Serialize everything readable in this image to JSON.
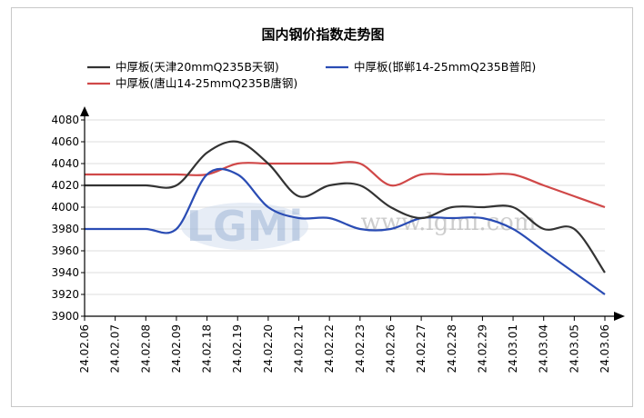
{
  "chart_data": {
    "type": "line",
    "title": "国内钢价指数走势图",
    "watermark": {
      "logo": "LGMi",
      "url": "www.lgmi.com"
    },
    "categories": [
      "24.02.06",
      "24.02.07",
      "24.02.08",
      "24.02.09",
      "24.02.18",
      "24.02.19",
      "24.02.20",
      "24.02.21",
      "24.02.22",
      "24.02.23",
      "24.02.26",
      "24.02.27",
      "24.02.28",
      "24.02.29",
      "24.03.01",
      "24.03.04",
      "24.03.05",
      "24.03.06"
    ],
    "ylim": [
      3900,
      4080
    ],
    "yticks": [
      3900,
      3920,
      3940,
      3960,
      3980,
      4000,
      4020,
      4040,
      4060,
      4080
    ],
    "grid": true,
    "legend_position": "top",
    "series": [
      {
        "name": "中厚板(天津20mmQ235B天钢)",
        "color": "#333333",
        "values": [
          4020,
          4020,
          4020,
          4020,
          4050,
          4060,
          4040,
          4010,
          4020,
          4020,
          4000,
          3990,
          4000,
          4000,
          4000,
          3980,
          3980,
          3940
        ]
      },
      {
        "name": "中厚板(邯郸14-25mmQ235B普阳)",
        "color": "#2a4cb4",
        "values": [
          3980,
          3980,
          3980,
          3980,
          4030,
          4030,
          4000,
          3990,
          3990,
          3980,
          3980,
          3990,
          3990,
          3990,
          3980,
          3960,
          3940,
          3920
        ]
      },
      {
        "name": "中厚板(唐山14-25mmQ235B唐钢)",
        "color": "#d04848",
        "values": [
          4030,
          4030,
          4030,
          4030,
          4030,
          4040,
          4040,
          4040,
          4040,
          4040,
          4020,
          4030,
          4030,
          4030,
          4030,
          4020,
          4010,
          4000
        ]
      }
    ]
  }
}
